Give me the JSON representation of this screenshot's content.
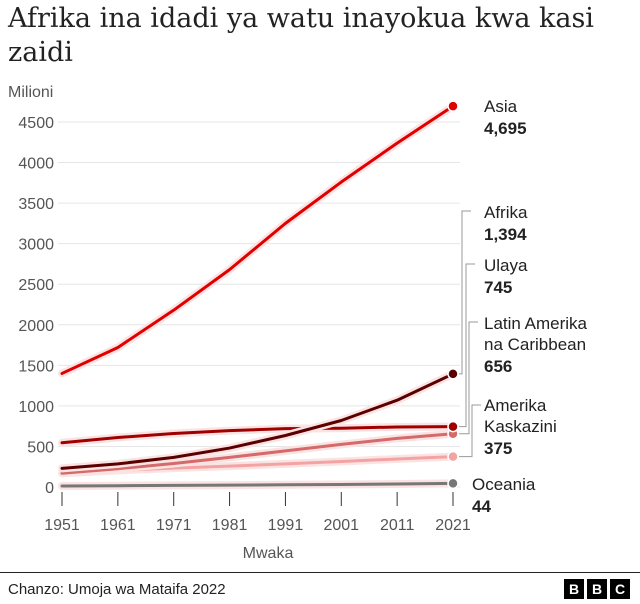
{
  "title": "Afrika ina idadi ya watu inayokua kwa kasi zaidi",
  "source": "Chanzo: Umoja wa Mataifa 2022",
  "logo": "BBC",
  "chart_data": {
    "type": "line",
    "title": "Afrika ina idadi ya watu inayokua kwa kasi zaidi",
    "ylabel": "Milioni",
    "xlabel": "Mwaka",
    "ylim": [
      0,
      4700
    ],
    "yticks": [
      0,
      500,
      1000,
      1500,
      2000,
      2500,
      3000,
      3500,
      4000,
      4500
    ],
    "x": [
      1951,
      1961,
      1971,
      1981,
      1991,
      2001,
      2011,
      2021
    ],
    "grid": true,
    "series": [
      {
        "name": "Asia",
        "end_label": "4,695",
        "color": "#e00000",
        "values": [
          1400,
          1720,
          2180,
          2680,
          3250,
          3760,
          4240,
          4695
        ]
      },
      {
        "name": "Afrika",
        "end_label": "1,394",
        "color": "#5a0000",
        "values": [
          230,
          285,
          365,
          480,
          635,
          820,
          1070,
          1394
        ]
      },
      {
        "name": "Ulaya",
        "end_label": "745",
        "color": "#a00000",
        "values": [
          545,
          610,
          660,
          695,
          720,
          725,
          740,
          745
        ]
      },
      {
        "name": "Latin Amerika na Caribbean",
        "end_label": "656",
        "color": "#d46a6a",
        "values": [
          170,
          225,
          290,
          365,
          445,
          525,
          600,
          656
        ]
      },
      {
        "name": "Amerika Kaskazini",
        "end_label": "375",
        "color": "#f4a3a3",
        "values": [
          170,
          205,
          232,
          258,
          285,
          315,
          345,
          375
        ]
      },
      {
        "name": "Oceania",
        "end_label": "44",
        "color": "#777777",
        "values": [
          13,
          16,
          20,
          23,
          27,
          31,
          37,
          44
        ]
      }
    ]
  }
}
